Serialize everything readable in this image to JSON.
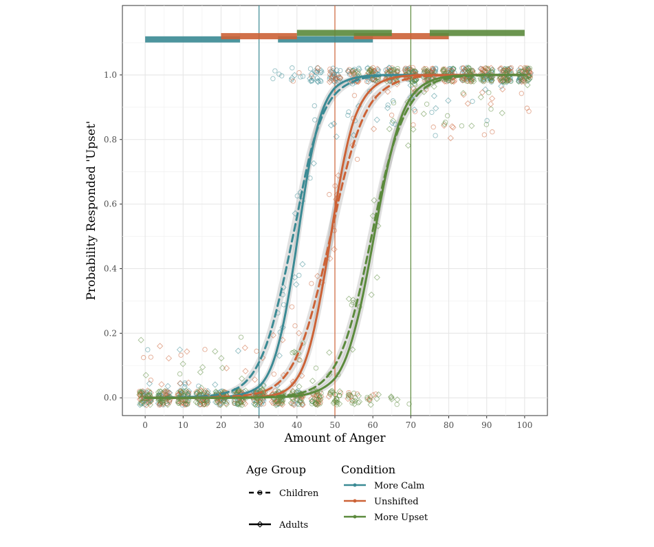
{
  "chart_data": {
    "type": "scatter",
    "xlabel": "Amount of Anger",
    "ylabel": "Probability Responded 'Upset'",
    "xlim": [
      -6,
      106
    ],
    "ylim": [
      -0.055,
      1.215
    ],
    "x_ticks": [
      0,
      10,
      20,
      30,
      40,
      50,
      60,
      70,
      80,
      90,
      100
    ],
    "x_tick_labels": [
      "0",
      "10",
      "20",
      "30",
      "40",
      "50",
      "60",
      "70",
      "80",
      "90",
      "100"
    ],
    "y_ticks": [
      0.0,
      0.2,
      0.4,
      0.6,
      0.8,
      1.0
    ],
    "y_tick_labels": [
      "0.0",
      "0.2",
      "0.4",
      "0.6",
      "0.8",
      "1.0"
    ],
    "grid": true,
    "legend_position": "bottom",
    "stimulus_x": [
      0,
      5,
      10,
      15,
      20,
      25,
      30,
      35,
      40,
      45,
      50,
      55,
      60,
      65,
      70,
      75,
      80,
      85,
      90,
      95,
      100
    ],
    "conditions": [
      {
        "name": "More Calm",
        "color": "#3a8a94",
        "reference_x": 30
      },
      {
        "name": "Unshifted",
        "color": "#cc6236",
        "reference_x": 50
      },
      {
        "name": "More Upset",
        "color": "#5b8a3c",
        "reference_x": 70
      }
    ],
    "age_groups": [
      {
        "name": "Children",
        "line": "dashed",
        "marker": "circle"
      },
      {
        "name": "Adults",
        "line": "solid",
        "marker": "diamond"
      }
    ],
    "series": [
      {
        "condition": "More Calm",
        "age_group": "Children",
        "x": [
          0,
          5,
          10,
          15,
          20,
          25,
          30,
          35,
          40,
          45,
          50,
          55,
          60,
          65,
          70,
          75,
          80,
          85,
          90,
          95,
          100
        ],
        "y": [
          0.0,
          0.001,
          0.002,
          0.004,
          0.012,
          0.035,
          0.11,
          0.29,
          0.56,
          0.82,
          0.94,
          0.98,
          0.995,
          0.999,
          1.0,
          1.0,
          1.0,
          1.0,
          1.0,
          1.0,
          1.0
        ]
      },
      {
        "condition": "More Calm",
        "age_group": "Adults",
        "x": [
          0,
          5,
          10,
          15,
          20,
          25,
          30,
          35,
          40,
          45,
          50,
          55,
          60,
          65,
          70,
          75,
          80,
          85,
          90,
          95,
          100
        ],
        "y": [
          0.0,
          0.0,
          0.0,
          0.001,
          0.002,
          0.01,
          0.035,
          0.16,
          0.48,
          0.82,
          0.96,
          0.99,
          0.998,
          1.0,
          1.0,
          1.0,
          1.0,
          1.0,
          1.0,
          1.0,
          1.0
        ]
      },
      {
        "condition": "Unshifted",
        "age_group": "Children",
        "x": [
          0,
          5,
          10,
          15,
          20,
          25,
          30,
          35,
          40,
          45,
          50,
          55,
          60,
          65,
          70,
          75,
          80,
          85,
          90,
          95,
          100
        ],
        "y": [
          0.0,
          0.0,
          0.0,
          0.001,
          0.003,
          0.006,
          0.015,
          0.045,
          0.13,
          0.31,
          0.56,
          0.79,
          0.92,
          0.97,
          0.99,
          0.997,
          0.999,
          1.0,
          1.0,
          1.0,
          1.0
        ]
      },
      {
        "condition": "Unshifted",
        "age_group": "Adults",
        "x": [
          0,
          5,
          10,
          15,
          20,
          25,
          30,
          35,
          40,
          45,
          50,
          55,
          60,
          65,
          70,
          75,
          80,
          85,
          90,
          95,
          100
        ],
        "y": [
          0.0,
          0.0,
          0.0,
          0.0,
          0.0,
          0.001,
          0.003,
          0.012,
          0.06,
          0.24,
          0.58,
          0.86,
          0.96,
          0.99,
          0.998,
          1.0,
          1.0,
          1.0,
          1.0,
          1.0,
          1.0
        ]
      },
      {
        "condition": "More Upset",
        "age_group": "Children",
        "x": [
          0,
          5,
          10,
          15,
          20,
          25,
          30,
          35,
          40,
          45,
          50,
          55,
          60,
          65,
          70,
          75,
          80,
          85,
          90,
          95,
          100
        ],
        "y": [
          0.0,
          0.0,
          0.0,
          0.0,
          0.0,
          0.001,
          0.002,
          0.005,
          0.012,
          0.035,
          0.1,
          0.26,
          0.52,
          0.77,
          0.91,
          0.97,
          0.99,
          0.997,
          0.999,
          1.0,
          1.0
        ]
      },
      {
        "condition": "More Upset",
        "age_group": "Adults",
        "x": [
          0,
          5,
          10,
          15,
          20,
          25,
          30,
          35,
          40,
          45,
          50,
          55,
          60,
          65,
          70,
          75,
          80,
          85,
          90,
          95,
          100
        ],
        "y": [
          0.0,
          0.0,
          0.0,
          0.0,
          0.0,
          0.0,
          0.001,
          0.002,
          0.006,
          0.02,
          0.06,
          0.2,
          0.48,
          0.77,
          0.93,
          0.98,
          0.995,
          0.999,
          1.0,
          1.0,
          1.0
        ]
      }
    ],
    "significance_bars": [
      {
        "condition": "More Calm",
        "y": 1.11,
        "segments": [
          [
            0,
            25
          ],
          [
            35,
            60
          ]
        ]
      },
      {
        "condition": "Unshifted",
        "y": 1.12,
        "segments": [
          [
            20,
            40
          ],
          [
            55,
            80
          ]
        ]
      },
      {
        "condition": "More Upset",
        "y": 1.13,
        "segments": [
          [
            40,
            65
          ],
          [
            75,
            100
          ]
        ]
      }
    ]
  },
  "legend": {
    "age_group_title": "Age Group",
    "condition_title": "Condition",
    "age_groups": [
      {
        "label": "Children"
      },
      {
        "label": "Adults"
      }
    ],
    "conditions": [
      {
        "label": "More Calm",
        "color": "#3a8a94"
      },
      {
        "label": "Unshifted",
        "color": "#cc6236"
      },
      {
        "label": "More Upset",
        "color": "#5b8a3c"
      }
    ]
  }
}
